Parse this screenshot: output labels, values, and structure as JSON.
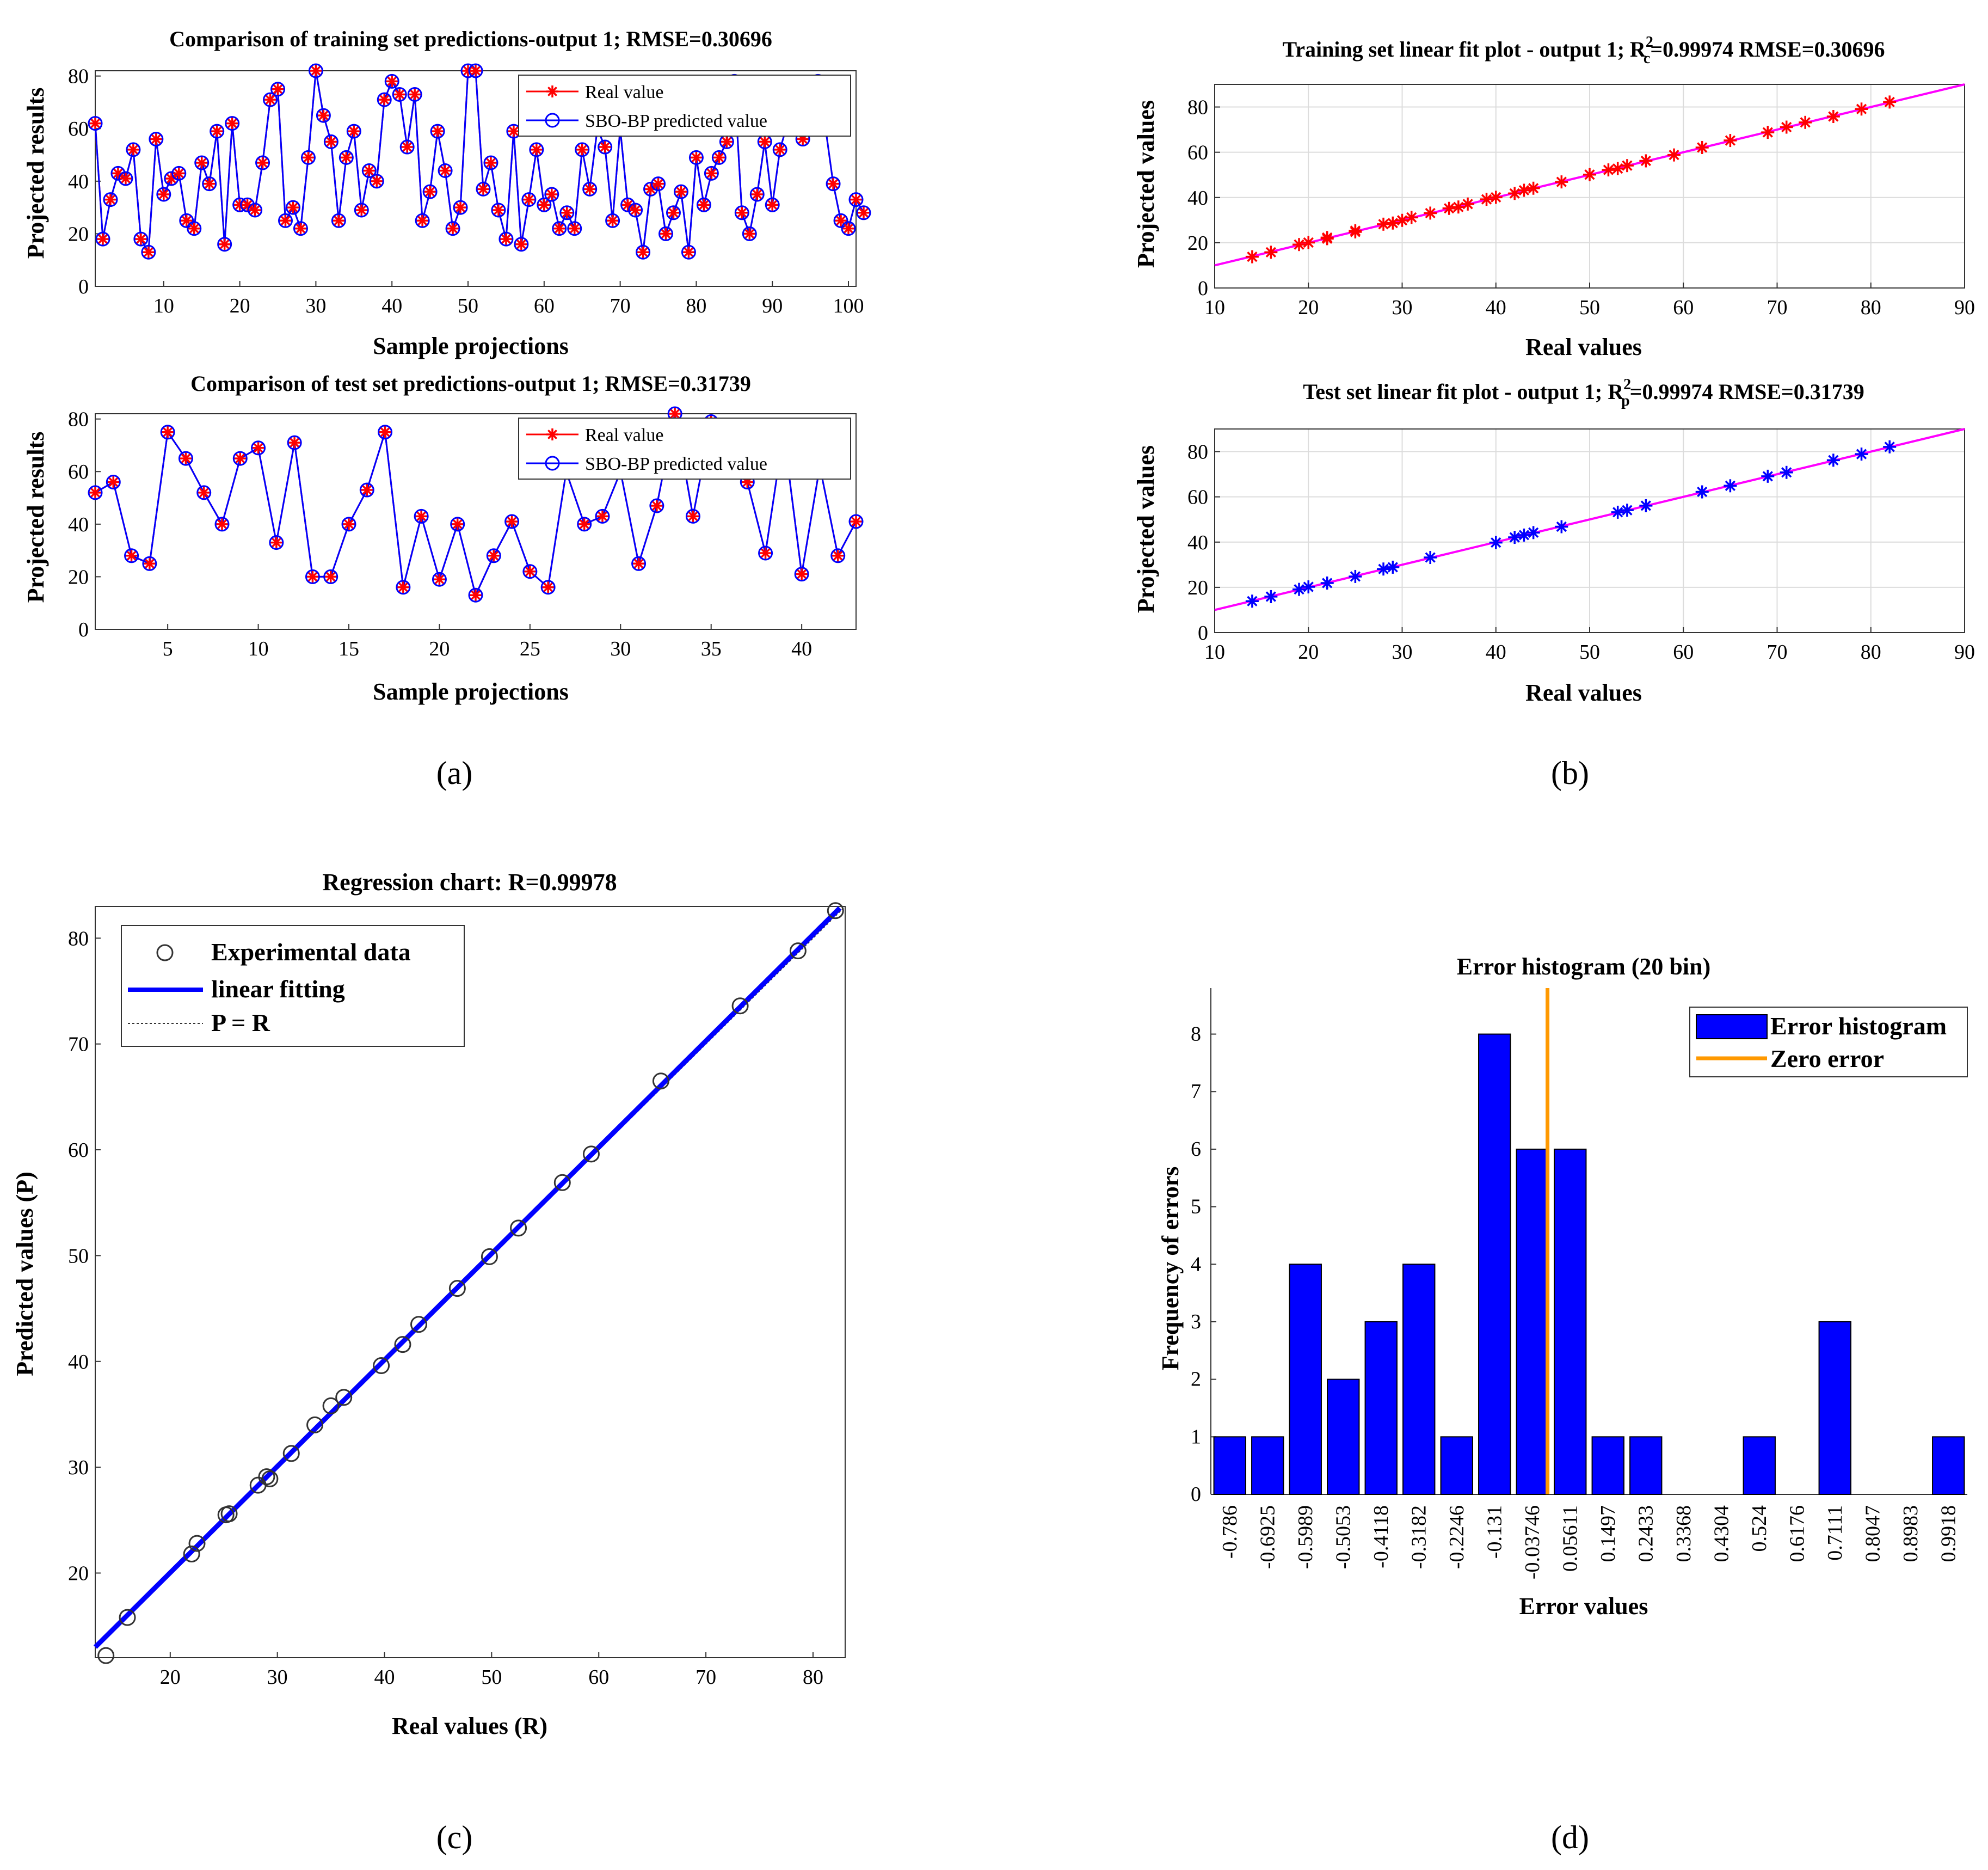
{
  "charts": {
    "a1": {
      "type": "line",
      "title": "Comparison of training set predictions-output 1; RMSE=0.30696",
      "xlabel": "Sample projections",
      "ylabel": "Projected results",
      "xlim": [
        1,
        101
      ],
      "ylim": [
        0,
        82
      ],
      "xticks": [
        10,
        20,
        30,
        40,
        50,
        60,
        70,
        80,
        90,
        100
      ],
      "yticks": [
        0,
        20,
        40,
        60,
        80
      ],
      "legend": [
        "Real value",
        "SBO-BP predicted value"
      ],
      "values": [
        62,
        18,
        33,
        43,
        41,
        52,
        18,
        13,
        56,
        35,
        41,
        43,
        25,
        22,
        47,
        39,
        59,
        16,
        62,
        31,
        31,
        29,
        47,
        71,
        75,
        25,
        30,
        22,
        49,
        82,
        65,
        55,
        25,
        49,
        59,
        29,
        44,
        40,
        71,
        78,
        73,
        53,
        73,
        25,
        36,
        59,
        44,
        22,
        30,
        82,
        82,
        37,
        47,
        29,
        18,
        59,
        16,
        33,
        52,
        31,
        35,
        22,
        28,
        22,
        52,
        37,
        60,
        53,
        25,
        60,
        31,
        29,
        13,
        37,
        39,
        20,
        28,
        36,
        13,
        49,
        31,
        43,
        49,
        55,
        78,
        28,
        20,
        35,
        55,
        31,
        52,
        62,
        60,
        56,
        60,
        78,
        60,
        39,
        25,
        22,
        33,
        28
      ]
    },
    "a2": {
      "type": "line",
      "title": "Comparison of test set predictions-output 1; RMSE=0.31739",
      "xlabel": "Sample projections",
      "ylabel": "Projected results",
      "xlim": [
        1,
        43
      ],
      "ylim": [
        0,
        82
      ],
      "xticks": [
        5,
        10,
        15,
        20,
        25,
        30,
        35,
        40
      ],
      "yticks": [
        0,
        20,
        40,
        60,
        80
      ],
      "legend": [
        "Real value",
        "SBO-BP predicted value"
      ],
      "values": [
        52,
        56,
        28,
        25,
        75,
        65,
        52,
        40,
        65,
        69,
        33,
        71,
        20,
        20,
        40,
        53,
        75,
        16,
        43,
        19,
        40,
        13,
        28,
        41,
        22,
        16,
        60,
        40,
        43,
        60,
        25,
        47,
        82,
        43,
        79,
        62,
        56,
        29,
        75,
        21,
        62,
        28,
        41
      ]
    },
    "b1": {
      "type": "scatter",
      "title_main": "Training set linear fit plot - output 1; R",
      "title_sup": "2",
      "title_sub": "c",
      "title_tail": "=0.99974  RMSE=0.30696",
      "xlabel": "Real values",
      "ylabel": "Projected values",
      "xlim": [
        10,
        90
      ],
      "ylim": [
        0,
        90
      ],
      "xticks": [
        10,
        20,
        30,
        40,
        50,
        60,
        70,
        80,
        90
      ],
      "yticks": [
        0,
        20,
        40,
        60,
        80
      ],
      "x": [
        14,
        16,
        19,
        20,
        22,
        22,
        25,
        25,
        28,
        29,
        30,
        31,
        33,
        35,
        36,
        37,
        39,
        40,
        42,
        43,
        44,
        47,
        50,
        52,
        53,
        54,
        56,
        59,
        62,
        65,
        69,
        71,
        73,
        76,
        79,
        82
      ],
      "y": [
        13.8,
        15.8,
        19.2,
        20.1,
        21.8,
        22.3,
        24.8,
        25.3,
        28.2,
        28.7,
        29.9,
        31.2,
        33.1,
        35.2,
        35.8,
        37.1,
        39.2,
        40.1,
        41.8,
        43.2,
        44.1,
        46.9,
        50.1,
        52.2,
        52.8,
        54.1,
        56.2,
        58.8,
        62.1,
        65.2,
        68.8,
        71.1,
        73.2,
        75.8,
        79.1,
        82.2
      ]
    },
    "b2": {
      "type": "scatter",
      "title_main": "Test set linear fit plot - output 1; R",
      "title_sup": "2",
      "title_sub": "p",
      "title_tail": "=0.99974  RMSE=0.31739",
      "xlabel": "Real values",
      "ylabel": "Projected values",
      "xlim": [
        10,
        90
      ],
      "ylim": [
        0,
        90
      ],
      "xticks": [
        10,
        20,
        30,
        40,
        50,
        60,
        70,
        80,
        90
      ],
      "yticks": [
        0,
        20,
        40,
        60,
        80
      ],
      "x": [
        14,
        16,
        19,
        20,
        22,
        25,
        28,
        29,
        33,
        40,
        42,
        43,
        44,
        47,
        53,
        54,
        56,
        62,
        65,
        69,
        71,
        76,
        79,
        82
      ],
      "y": [
        13.9,
        15.9,
        19.1,
        20.2,
        21.9,
        24.8,
        28.1,
        28.9,
        33.2,
        39.8,
        42.1,
        43.1,
        44.2,
        46.8,
        53.2,
        54.1,
        56.1,
        62.2,
        64.9,
        69.1,
        70.8,
        76.2,
        78.9,
        82.1
      ]
    },
    "c": {
      "type": "scatter",
      "title": "Regression chart: R=0.99978",
      "xlabel": "Real values (R)",
      "ylabel": "Predicted values (P)",
      "xlim": [
        13,
        83
      ],
      "ylim": [
        12,
        83
      ],
      "xticks": [
        20,
        30,
        40,
        50,
        60,
        70,
        80
      ],
      "yticks": [
        20,
        30,
        40,
        50,
        60,
        70,
        80
      ],
      "legend": [
        "Experimental data",
        "linear fitting",
        "P = R"
      ],
      "x": [
        14,
        16,
        22,
        22.5,
        25.2,
        25.5,
        28.2,
        29,
        29.3,
        31.3,
        33.5,
        35,
        36.2,
        39.7,
        41.7,
        43.2,
        46.8,
        49.8,
        52.5,
        56.6,
        59.3,
        65.8,
        73.2,
        78.6,
        82.1
      ],
      "y": [
        12.2,
        15.8,
        21.8,
        22.8,
        25.5,
        25.6,
        28.3,
        29.1,
        28.9,
        31.3,
        34,
        35.8,
        36.6,
        39.6,
        41.6,
        43.5,
        46.9,
        49.9,
        52.6,
        56.9,
        59.6,
        66.5,
        73.6,
        78.8,
        82.6
      ]
    },
    "d": {
      "type": "bar",
      "title": "Error histogram (20 bin)",
      "xlabel": "Error values",
      "ylabel": "Frequency of errors",
      "ylim": [
        0,
        8.8
      ],
      "yticks": [
        0,
        1,
        2,
        3,
        4,
        5,
        6,
        7,
        8
      ],
      "categories": [
        "-0.786",
        "-0.6925",
        "-0.5989",
        "-0.5053",
        "-0.4118",
        "-0.3182",
        "-0.2246",
        "-0.131",
        "-0.03746",
        "0.05611",
        "0.1497",
        "0.2433",
        "0.3368",
        "0.4304",
        "0.524",
        "0.6176",
        "0.7111",
        "0.8047",
        "0.8983",
        "0.9918"
      ],
      "values": [
        1,
        1,
        4,
        2,
        3,
        4,
        1,
        8,
        6,
        6,
        1,
        1,
        0,
        0,
        1,
        0,
        3,
        0,
        0,
        1
      ],
      "zero_error": 0,
      "legend": [
        "Error histogram",
        "Zero error"
      ]
    }
  },
  "captions": {
    "a": "(a)",
    "b": "(b)",
    "c": "(c)",
    "d": "(d)"
  },
  "colors": {
    "real": "#ff0000",
    "pred": "#0000ff",
    "fit": "#ff00ff",
    "regression": "#0000ff",
    "bar": "#0000ff",
    "zero": "#ff9900"
  }
}
